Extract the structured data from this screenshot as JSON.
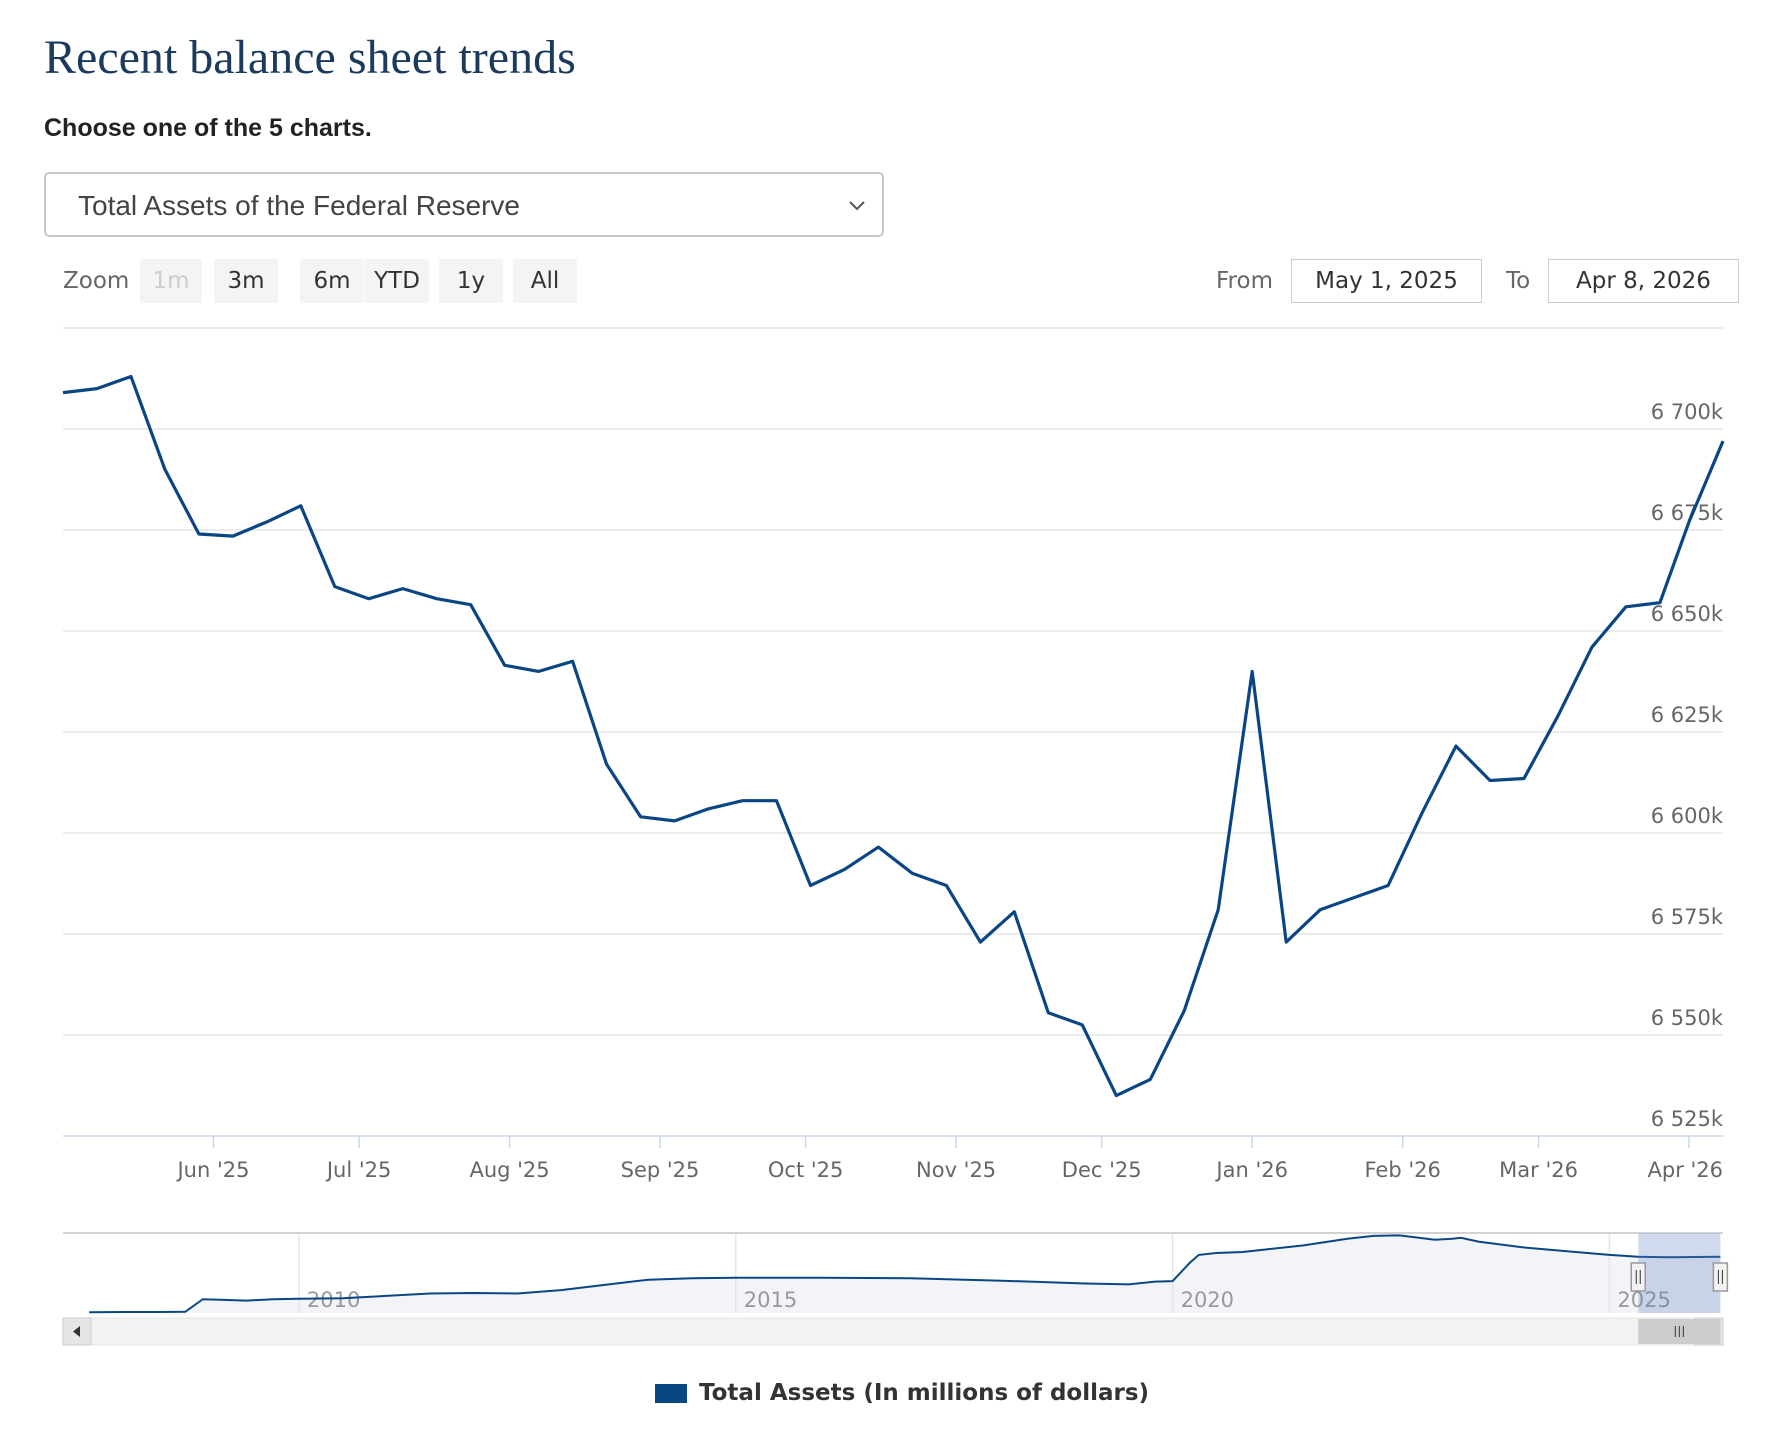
{
  "page": {
    "title": "Recent balance sheet trends",
    "chooser_label": "Choose one of the 5 charts.",
    "selected_chart": "Total Assets of the Federal Reserve"
  },
  "controls": {
    "zoom_label": "Zoom",
    "zoom_buttons": [
      "1m",
      "3m",
      "6m",
      "YTD",
      "1y",
      "All"
    ],
    "disabled_zoom": "1m",
    "from_label": "From",
    "from_value": "May 1, 2025",
    "to_label": "To",
    "to_value": "Apr 8, 2026"
  },
  "chart_data": {
    "type": "line",
    "title": "",
    "xlabel": "",
    "ylabel": "",
    "series": [
      {
        "name": "Total Assets (In millions of dollars)",
        "color": "#0b4684",
        "x": [
          "2025-05-01",
          "2025-05-08",
          "2025-05-15",
          "2025-05-22",
          "2025-05-29",
          "2025-06-05",
          "2025-06-12",
          "2025-06-19",
          "2025-06-26",
          "2025-07-03",
          "2025-07-10",
          "2025-07-17",
          "2025-07-24",
          "2025-07-31",
          "2025-08-07",
          "2025-08-14",
          "2025-08-21",
          "2025-08-28",
          "2025-09-04",
          "2025-09-11",
          "2025-09-18",
          "2025-09-25",
          "2025-10-02",
          "2025-10-09",
          "2025-10-16",
          "2025-10-23",
          "2025-10-30",
          "2025-11-06",
          "2025-11-13",
          "2025-11-20",
          "2025-11-27",
          "2025-12-04",
          "2025-12-11",
          "2025-12-18",
          "2025-12-25",
          "2026-01-01",
          "2026-01-08",
          "2026-01-15",
          "2026-01-22",
          "2026-01-29",
          "2026-02-05",
          "2026-02-12",
          "2026-02-19",
          "2026-02-26",
          "2026-03-05",
          "2026-03-12",
          "2026-03-19",
          "2026-03-26",
          "2026-04-01",
          "2026-04-08"
        ],
        "values": [
          6709,
          6710,
          6713,
          6690,
          6674,
          6673.5,
          6677,
          6681,
          6661,
          6658,
          6660.5,
          6658,
          6656.5,
          6641.5,
          6640,
          6642.5,
          6617,
          6604,
          6603,
          6606,
          6608,
          6608,
          6587,
          6591,
          6596.5,
          6590,
          6587,
          6573,
          6580.5,
          6555.5,
          6552.5,
          6535,
          6539,
          6556,
          6581,
          6640,
          6573,
          6581,
          6584,
          6587,
          6605,
          6621.5,
          6613,
          6613.5,
          6629,
          6646,
          6656,
          6657,
          6677,
          6697
        ]
      }
    ],
    "ylim": [
      6525,
      6725
    ],
    "y_ticks": [
      6525,
      6550,
      6575,
      6600,
      6625,
      6650,
      6675,
      6700
    ],
    "y_tick_labels": [
      "6 525k",
      "6 550k",
      "6 575k",
      "6 600k",
      "6 625k",
      "6 650k",
      "6 675k",
      "6 700k"
    ],
    "x_ticks": [
      "2025-06-01",
      "2025-07-01",
      "2025-08-01",
      "2025-09-01",
      "2025-10-01",
      "2025-11-01",
      "2025-12-01",
      "2026-01-01",
      "2026-02-01",
      "2026-03-01",
      "2026-04-01"
    ],
    "x_tick_labels": [
      "Jun '25",
      "Jul '25",
      "Aug '25",
      "Sep '25",
      "Oct '25",
      "Nov '25",
      "Dec '25",
      "Jan '26",
      "Feb '26",
      "Mar '26",
      "Apr '26"
    ],
    "x_range": [
      "2025-05-01",
      "2026-04-08"
    ],
    "grid": true,
    "legend_position": "bottom-center",
    "navigator": {
      "x_tick_labels": [
        "2010",
        "2015",
        "2020",
        "2025"
      ],
      "x_ticks": [
        2010,
        2015,
        2020,
        2025
      ],
      "x_range": [
        2007.3,
        2026.3
      ],
      "y_range": [
        800,
        9200
      ],
      "selected_range": [
        2025.33,
        2026.27
      ],
      "series": {
        "x": [
          2007.6,
          2008.0,
          2008.4,
          2008.7,
          2008.9,
          2009.1,
          2009.4,
          2009.7,
          2010.0,
          2010.5,
          2011.0,
          2011.5,
          2012.0,
          2012.5,
          2013.0,
          2013.5,
          2014.0,
          2014.5,
          2015.0,
          2016.0,
          2017.0,
          2018.0,
          2018.5,
          2019.0,
          2019.5,
          2019.8,
          2020.0,
          2020.2,
          2020.3,
          2020.5,
          2020.8,
          2021.0,
          2021.5,
          2022.0,
          2022.3,
          2022.6,
          2023.0,
          2023.2,
          2023.3,
          2023.5,
          2024.0,
          2024.5,
          2025.0,
          2025.33,
          2025.7,
          2026.27
        ],
        "values": [
          880,
          900,
          910,
          930,
          2250,
          2200,
          2100,
          2250,
          2300,
          2350,
          2600,
          2850,
          2900,
          2850,
          3200,
          3750,
          4300,
          4450,
          4500,
          4500,
          4450,
          4200,
          4050,
          3900,
          3800,
          4100,
          4150,
          6100,
          6900,
          7100,
          7200,
          7400,
          7900,
          8600,
          8900,
          8950,
          8500,
          8600,
          8700,
          8300,
          7700,
          7300,
          6900,
          6700,
          6650,
          6697
        ]
      }
    }
  }
}
